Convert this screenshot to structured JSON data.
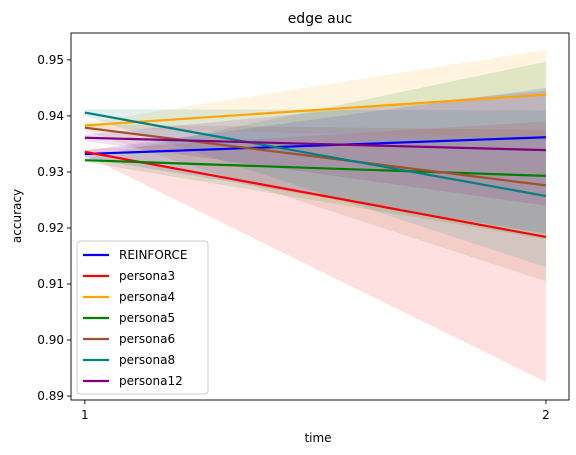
{
  "chart_data": {
    "type": "line",
    "title": "edge auc",
    "xlabel": "time",
    "ylabel": "accuracy",
    "x": [
      1,
      2
    ],
    "xlim": [
      0.97,
      2.05
    ],
    "ylim": [
      0.8893,
      0.9548
    ],
    "yticks": [
      0.89,
      0.9,
      0.91,
      0.92,
      0.93,
      0.94,
      0.95
    ],
    "ytick_labels": [
      "0.89",
      "0.90",
      "0.91",
      "0.92",
      "0.93",
      "0.94",
      "0.95"
    ],
    "xticks": [
      1,
      2
    ],
    "xtick_labels": [
      "1",
      "2"
    ],
    "grid": false,
    "legend_position": "lower-left",
    "series": [
      {
        "name": "REINFORCE",
        "color": "#0000ff",
        "values": [
          0.9332,
          0.9362
        ],
        "lower": [
          0.9325,
          0.919
        ],
        "upper": [
          0.9338,
          0.945
        ]
      },
      {
        "name": "persona3",
        "color": "#ff0000",
        "values": [
          0.9336,
          0.9184
        ],
        "lower": [
          0.933,
          0.8925
        ],
        "upper": [
          0.934,
          0.939
        ]
      },
      {
        "name": "persona4",
        "color": "#ffa500",
        "values": [
          0.9383,
          0.9438
        ],
        "lower": [
          0.9378,
          0.936
        ],
        "upper": [
          0.9388,
          0.9518
        ]
      },
      {
        "name": "persona5",
        "color": "#008000",
        "values": [
          0.9321,
          0.9293
        ],
        "lower": [
          0.9318,
          0.918
        ],
        "upper": [
          0.9324,
          0.9497
        ]
      },
      {
        "name": "persona6",
        "color": "#a0522d",
        "values": [
          0.9379,
          0.9276
        ],
        "lower": [
          0.9373,
          0.9105
        ],
        "upper": [
          0.9385,
          0.9375
        ]
      },
      {
        "name": "persona8",
        "color": "#008080",
        "values": [
          0.9406,
          0.9257
        ],
        "lower": [
          0.94,
          0.913
        ],
        "upper": [
          0.9412,
          0.941
        ]
      },
      {
        "name": "persona12",
        "color": "#800080",
        "values": [
          0.9361,
          0.9339
        ],
        "lower": [
          0.9355,
          0.924
        ],
        "upper": [
          0.9367,
          0.9445
        ]
      }
    ]
  }
}
